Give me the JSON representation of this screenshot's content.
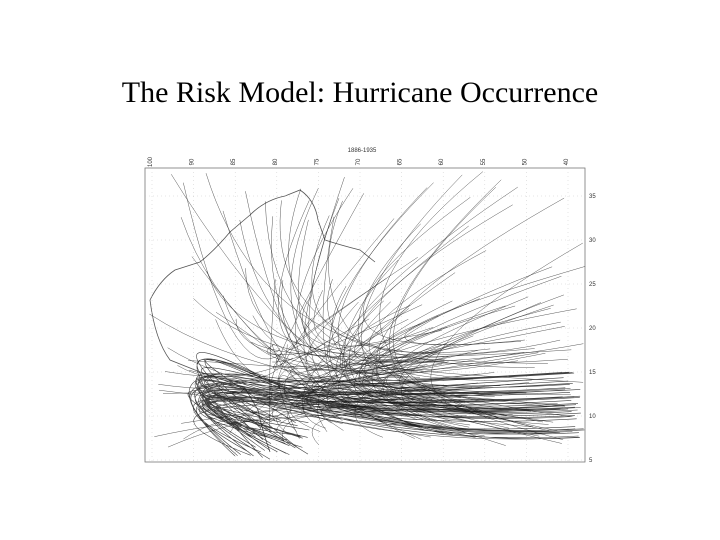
{
  "slide": {
    "title": "The Risk Model: Hurricane Occurrence",
    "map": {
      "header": "1886-1935",
      "latitude_labels": [
        "35",
        "30",
        "25",
        "20",
        "15",
        "10",
        "5"
      ],
      "longitude_labels": [
        "100",
        "90",
        "85",
        "80",
        "75",
        "70",
        "65",
        "60",
        "55",
        "50",
        "40"
      ]
    }
  }
}
